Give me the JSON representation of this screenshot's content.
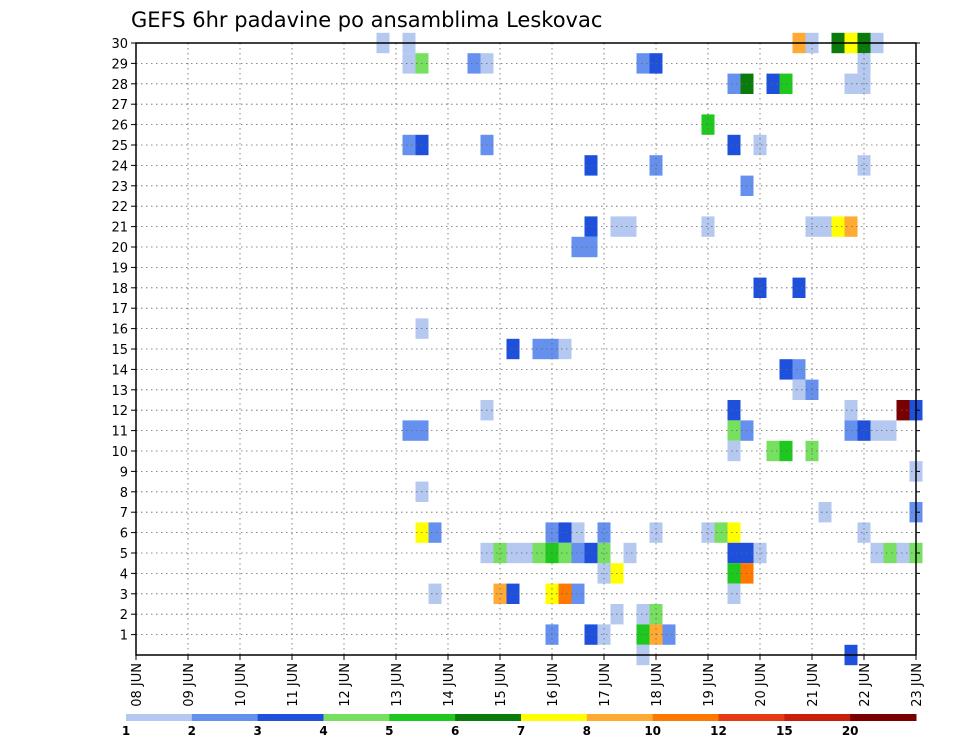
{
  "chart_data": {
    "type": "heatmap",
    "title": "GEFS 6hr padavine po ansamblima Leskovac",
    "xlabel": "",
    "ylabel": "",
    "x_ticks": [
      "08 JUN",
      "09 JUN",
      "10 JUN",
      "11 JUN",
      "12 JUN",
      "13 JUN",
      "14 JUN",
      "15 JUN",
      "16 JUN",
      "17 JUN",
      "18 JUN",
      "19 JUN",
      "20 JUN",
      "21 JUN",
      "22 JUN",
      "23 JUN"
    ],
    "x_range_days": [
      0,
      15
    ],
    "y_ticks": [
      "1",
      "2",
      "3",
      "4",
      "5",
      "6",
      "7",
      "8",
      "9",
      "10",
      "11",
      "12",
      "13",
      "14",
      "15",
      "16",
      "17",
      "18",
      "19",
      "20",
      "21",
      "22",
      "23",
      "24",
      "25",
      "26",
      "27",
      "28",
      "29",
      "30"
    ],
    "y_range": [
      0,
      30
    ],
    "grid": true,
    "legend": {
      "position": "bottom",
      "labels": [
        "1",
        "2",
        "3",
        "4",
        "5",
        "6",
        "7",
        "8",
        "10",
        "12",
        "15",
        "20"
      ],
      "colors": [
        "#b4c8f0",
        "#6690ee",
        "#1e50dc",
        "#78e060",
        "#1ec81e",
        "#0a7a0a",
        "#ffff00",
        "#ffaa32",
        "#ff7800",
        "#e63c14",
        "#c81e0a",
        "#7a0000"
      ]
    },
    "cells": [
      [
        4.75,
        30,
        0
      ],
      [
        5.25,
        30,
        0
      ],
      [
        12.75,
        30,
        7
      ],
      [
        13.0,
        30,
        0
      ],
      [
        13.5,
        30,
        5
      ],
      [
        13.75,
        30,
        6
      ],
      [
        14.0,
        30,
        5
      ],
      [
        14.25,
        30,
        0
      ],
      [
        5.25,
        29,
        0
      ],
      [
        5.5,
        29,
        3
      ],
      [
        6.5,
        29,
        1
      ],
      [
        6.75,
        29,
        0
      ],
      [
        9.75,
        29,
        1
      ],
      [
        10.0,
        29,
        2
      ],
      [
        14.0,
        29,
        0
      ],
      [
        11.5,
        28,
        1
      ],
      [
        11.75,
        28,
        5
      ],
      [
        12.25,
        28,
        2
      ],
      [
        12.5,
        28,
        4
      ],
      [
        13.75,
        28,
        0
      ],
      [
        14.0,
        28,
        0
      ],
      [
        11.0,
        26,
        4
      ],
      [
        5.25,
        25,
        1
      ],
      [
        5.5,
        25,
        2
      ],
      [
        6.75,
        25,
        1
      ],
      [
        11.5,
        25,
        2
      ],
      [
        12.0,
        25,
        0
      ],
      [
        8.75,
        24,
        2
      ],
      [
        10.0,
        24,
        1
      ],
      [
        14.0,
        24,
        0
      ],
      [
        11.75,
        23,
        1
      ],
      [
        8.75,
        21,
        2
      ],
      [
        9.25,
        21,
        0
      ],
      [
        9.5,
        21,
        0
      ],
      [
        11.0,
        21,
        0
      ],
      [
        13.0,
        21,
        0
      ],
      [
        13.25,
        21,
        0
      ],
      [
        13.5,
        21,
        6
      ],
      [
        13.75,
        21,
        7
      ],
      [
        8.5,
        20,
        1
      ],
      [
        8.75,
        20,
        1
      ],
      [
        12.0,
        18,
        2
      ],
      [
        12.75,
        18,
        2
      ],
      [
        5.5,
        16,
        0
      ],
      [
        7.25,
        15,
        2
      ],
      [
        7.75,
        15,
        1
      ],
      [
        8.0,
        15,
        1
      ],
      [
        8.25,
        15,
        0
      ],
      [
        12.5,
        14,
        2
      ],
      [
        12.75,
        14,
        1
      ],
      [
        12.75,
        13,
        0
      ],
      [
        13.0,
        13,
        1
      ],
      [
        6.75,
        12,
        0
      ],
      [
        11.5,
        12,
        2
      ],
      [
        13.75,
        12,
        0
      ],
      [
        14.75,
        12,
        11
      ],
      [
        15.0,
        12,
        2
      ],
      [
        5.25,
        11,
        1
      ],
      [
        5.5,
        11,
        1
      ],
      [
        11.5,
        11,
        3
      ],
      [
        11.75,
        11,
        1
      ],
      [
        13.75,
        11,
        1
      ],
      [
        14.0,
        11,
        2
      ],
      [
        14.25,
        11,
        0
      ],
      [
        14.5,
        11,
        0
      ],
      [
        11.5,
        10,
        0
      ],
      [
        12.25,
        10,
        3
      ],
      [
        12.5,
        10,
        4
      ],
      [
        13.0,
        10,
        3
      ],
      [
        15.0,
        9,
        0
      ],
      [
        5.5,
        8,
        0
      ],
      [
        13.25,
        7,
        0
      ],
      [
        15.0,
        7,
        1
      ],
      [
        5.5,
        6,
        6
      ],
      [
        5.75,
        6,
        1
      ],
      [
        8.0,
        6,
        1
      ],
      [
        8.25,
        6,
        2
      ],
      [
        8.5,
        6,
        0
      ],
      [
        9.0,
        6,
        1
      ],
      [
        10.0,
        6,
        0
      ],
      [
        11.0,
        6,
        0
      ],
      [
        11.25,
        6,
        3
      ],
      [
        11.5,
        6,
        6
      ],
      [
        14.0,
        6,
        0
      ],
      [
        6.75,
        5,
        0
      ],
      [
        7.0,
        5,
        3
      ],
      [
        7.25,
        5,
        0
      ],
      [
        7.5,
        5,
        0
      ],
      [
        7.75,
        5,
        3
      ],
      [
        8.0,
        5,
        4
      ],
      [
        8.25,
        5,
        3
      ],
      [
        8.5,
        5,
        1
      ],
      [
        8.75,
        5,
        2
      ],
      [
        9.0,
        5,
        3
      ],
      [
        9.5,
        5,
        0
      ],
      [
        11.5,
        5,
        2
      ],
      [
        11.75,
        5,
        2
      ],
      [
        12.0,
        5,
        0
      ],
      [
        14.25,
        5,
        0
      ],
      [
        14.5,
        5,
        3
      ],
      [
        14.75,
        5,
        0
      ],
      [
        15.0,
        5,
        3
      ],
      [
        9.0,
        4,
        0
      ],
      [
        9.25,
        4,
        6
      ],
      [
        11.5,
        4,
        4
      ],
      [
        11.75,
        4,
        8
      ],
      [
        5.75,
        3,
        0
      ],
      [
        7.0,
        3,
        7
      ],
      [
        7.25,
        3,
        2
      ],
      [
        8.0,
        3,
        6
      ],
      [
        8.25,
        3,
        8
      ],
      [
        8.5,
        3,
        1
      ],
      [
        11.5,
        3,
        0
      ],
      [
        9.25,
        2,
        0
      ],
      [
        9.75,
        2,
        0
      ],
      [
        10.0,
        2,
        3
      ],
      [
        8.0,
        1,
        1
      ],
      [
        8.75,
        1,
        2
      ],
      [
        9.0,
        1,
        0
      ],
      [
        9.75,
        1,
        4
      ],
      [
        10.0,
        1,
        7
      ],
      [
        10.25,
        1,
        1
      ],
      [
        9.75,
        0,
        0
      ],
      [
        13.75,
        0,
        2
      ]
    ]
  }
}
